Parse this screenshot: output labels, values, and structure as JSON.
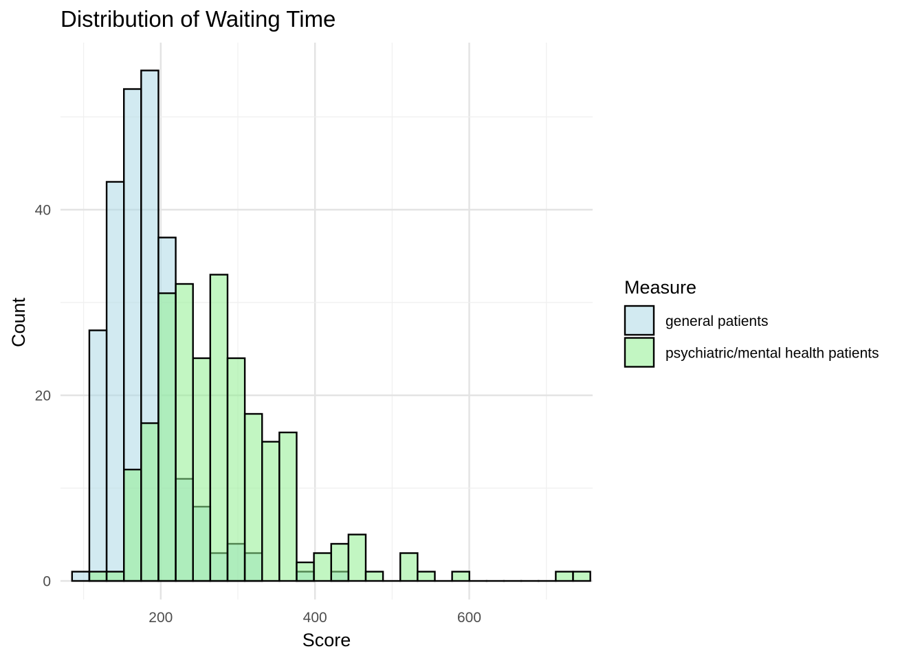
{
  "chart_data": {
    "type": "histogram",
    "title": "Distribution of Waiting Time",
    "xlabel": "Score",
    "ylabel": "Count",
    "xlim": [
      70,
      760
    ],
    "ylim": [
      -2,
      58
    ],
    "x_ticks": [
      200,
      400,
      600
    ],
    "y_ticks": [
      0,
      20,
      40
    ],
    "bin_width": 22.4,
    "grid": true,
    "legend": {
      "title": "Measure",
      "position": "right"
    },
    "series": [
      {
        "name": "general patients",
        "color": "#add8e6",
        "bins": [
          {
            "x0": 85.0,
            "x1": 107.4,
            "count": 1
          },
          {
            "x0": 107.4,
            "x1": 129.8,
            "count": 27
          },
          {
            "x0": 129.8,
            "x1": 152.2,
            "count": 43
          },
          {
            "x0": 152.2,
            "x1": 174.6,
            "count": 53
          },
          {
            "x0": 174.6,
            "x1": 197.0,
            "count": 55
          },
          {
            "x0": 197.0,
            "x1": 219.4,
            "count": 37
          },
          {
            "x0": 219.4,
            "x1": 241.8,
            "count": 11
          },
          {
            "x0": 241.8,
            "x1": 264.2,
            "count": 8
          },
          {
            "x0": 264.2,
            "x1": 286.6,
            "count": 3
          },
          {
            "x0": 286.6,
            "x1": 309.0,
            "count": 4
          },
          {
            "x0": 309.0,
            "x1": 331.4,
            "count": 3
          },
          {
            "x0": 376.2,
            "x1": 398.6,
            "count": 1
          },
          {
            "x0": 421.0,
            "x1": 443.4,
            "count": 1
          }
        ]
      },
      {
        "name": "psychiatric/mental health patients",
        "color": "#90ee90",
        "bins": [
          {
            "x0": 107.4,
            "x1": 129.8,
            "count": 1
          },
          {
            "x0": 129.8,
            "x1": 152.2,
            "count": 1
          },
          {
            "x0": 152.2,
            "x1": 174.6,
            "count": 12
          },
          {
            "x0": 174.6,
            "x1": 197.0,
            "count": 17
          },
          {
            "x0": 197.0,
            "x1": 219.4,
            "count": 31
          },
          {
            "x0": 219.4,
            "x1": 241.8,
            "count": 32
          },
          {
            "x0": 241.8,
            "x1": 264.2,
            "count": 24
          },
          {
            "x0": 264.2,
            "x1": 286.6,
            "count": 33
          },
          {
            "x0": 286.6,
            "x1": 309.0,
            "count": 24
          },
          {
            "x0": 309.0,
            "x1": 331.4,
            "count": 18
          },
          {
            "x0": 331.4,
            "x1": 353.8,
            "count": 15
          },
          {
            "x0": 353.8,
            "x1": 376.2,
            "count": 16
          },
          {
            "x0": 376.2,
            "x1": 398.6,
            "count": 2
          },
          {
            "x0": 398.6,
            "x1": 421.0,
            "count": 3
          },
          {
            "x0": 421.0,
            "x1": 443.4,
            "count": 4
          },
          {
            "x0": 443.4,
            "x1": 465.8,
            "count": 5
          },
          {
            "x0": 465.8,
            "x1": 488.2,
            "count": 1
          },
          {
            "x0": 488.2,
            "x1": 510.6,
            "count": 0
          },
          {
            "x0": 510.6,
            "x1": 533.0,
            "count": 3
          },
          {
            "x0": 533.0,
            "x1": 555.4,
            "count": 1
          },
          {
            "x0": 555.4,
            "x1": 577.8,
            "count": 0
          },
          {
            "x0": 577.8,
            "x1": 600.2,
            "count": 1
          },
          {
            "x0": 600.2,
            "x1": 622.6,
            "count": 0
          },
          {
            "x0": 622.6,
            "x1": 645.0,
            "count": 0
          },
          {
            "x0": 645.0,
            "x1": 667.4,
            "count": 0
          },
          {
            "x0": 667.4,
            "x1": 689.8,
            "count": 0
          },
          {
            "x0": 689.8,
            "x1": 712.2,
            "count": 0
          },
          {
            "x0": 712.2,
            "x1": 734.6,
            "count": 1
          },
          {
            "x0": 734.6,
            "x1": 757.0,
            "count": 1
          }
        ]
      }
    ]
  }
}
